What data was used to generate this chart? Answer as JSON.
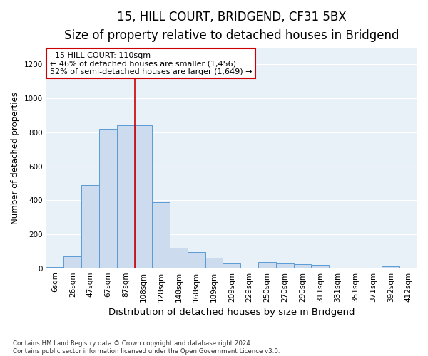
{
  "title_line1": "15, HILL COURT, BRIDGEND, CF31 5BX",
  "title_line2": "Size of property relative to detached houses in Bridgend",
  "xlabel": "Distribution of detached houses by size in Bridgend",
  "ylabel": "Number of detached properties",
  "categories": [
    "6sqm",
    "26sqm",
    "47sqm",
    "67sqm",
    "87sqm",
    "108sqm",
    "128sqm",
    "148sqm",
    "168sqm",
    "189sqm",
    "209sqm",
    "229sqm",
    "250sqm",
    "270sqm",
    "290sqm",
    "311sqm",
    "331sqm",
    "351sqm",
    "371sqm",
    "392sqm",
    "412sqm"
  ],
  "values": [
    5,
    70,
    490,
    820,
    840,
    840,
    390,
    120,
    95,
    60,
    30,
    0,
    35,
    30,
    25,
    20,
    0,
    0,
    0,
    10,
    0
  ],
  "bar_color": "#ccdcee",
  "bar_edge_color": "#5b9bd5",
  "vline_x": 4.5,
  "vline_color": "#cc0000",
  "annotation_text": "  15 HILL COURT: 110sqm\n← 46% of detached houses are smaller (1,456)\n52% of semi-detached houses are larger (1,649) →",
  "annotation_box_color": "#ffffff",
  "annotation_box_edge_color": "#cc0000",
  "ylim": [
    0,
    1300
  ],
  "yticks": [
    0,
    200,
    400,
    600,
    800,
    1000,
    1200
  ],
  "footer_text": "Contains HM Land Registry data © Crown copyright and database right 2024.\nContains public sector information licensed under the Open Government Licence v3.0.",
  "bg_color": "#e8f0f8",
  "title_fontsize": 12,
  "subtitle_fontsize": 10,
  "xlabel_fontsize": 9.5,
  "ylabel_fontsize": 8.5,
  "tick_fontsize": 7.5,
  "annotation_fontsize": 8
}
